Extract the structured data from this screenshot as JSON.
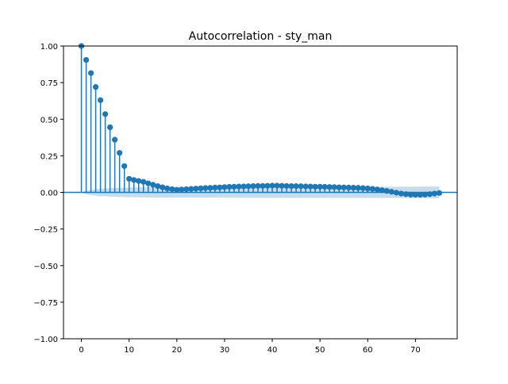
{
  "chart_data": {
    "type": "stem",
    "title": "Autocorrelation - sty_man",
    "xlabel": "",
    "ylabel": "",
    "xlim": [
      -3.75,
      78.75
    ],
    "ylim": [
      -1.0,
      1.0
    ],
    "xticks": [
      0,
      10,
      20,
      30,
      40,
      50,
      60,
      70
    ],
    "xtick_labels": [
      "0",
      "10",
      "20",
      "30",
      "40",
      "50",
      "60",
      "70"
    ],
    "yticks": [
      -1.0,
      -0.75,
      -0.5,
      -0.25,
      0.0,
      0.25,
      0.5,
      0.75,
      1.0
    ],
    "ytick_labels": [
      "−1.00",
      "−0.75",
      "−0.50",
      "−0.25",
      "0.00",
      "0.25",
      "0.50",
      "0.75",
      "1.00"
    ],
    "grid": false,
    "colors": {
      "stem": "#1f77b4",
      "confidence_band": "#1f77b4",
      "zero_line": "#1f77b4"
    },
    "lags": [
      0,
      1,
      2,
      3,
      4,
      5,
      6,
      7,
      8,
      9,
      10,
      11,
      12,
      13,
      14,
      15,
      16,
      17,
      18,
      19,
      20,
      21,
      22,
      23,
      24,
      25,
      26,
      27,
      28,
      29,
      30,
      31,
      32,
      33,
      34,
      35,
      36,
      37,
      38,
      39,
      40,
      41,
      42,
      43,
      44,
      45,
      46,
      47,
      48,
      49,
      50,
      51,
      52,
      53,
      54,
      55,
      56,
      57,
      58,
      59,
      60,
      61,
      62,
      63,
      64,
      65,
      66,
      67,
      68,
      69,
      70,
      71,
      72,
      73,
      74,
      75
    ],
    "acf": [
      1.0,
      0.905,
      0.815,
      0.72,
      0.63,
      0.535,
      0.445,
      0.36,
      0.27,
      0.18,
      0.093,
      0.085,
      0.078,
      0.072,
      0.062,
      0.052,
      0.043,
      0.035,
      0.027,
      0.022,
      0.018,
      0.02,
      0.022,
      0.024,
      0.026,
      0.028,
      0.03,
      0.031,
      0.033,
      0.034,
      0.036,
      0.038,
      0.039,
      0.04,
      0.041,
      0.042,
      0.043,
      0.044,
      0.044,
      0.045,
      0.046,
      0.046,
      0.045,
      0.044,
      0.043,
      0.043,
      0.042,
      0.041,
      0.04,
      0.039,
      0.039,
      0.038,
      0.037,
      0.036,
      0.035,
      0.034,
      0.033,
      0.032,
      0.031,
      0.029,
      0.027,
      0.024,
      0.02,
      0.015,
      0.01,
      0.004,
      -0.002,
      -0.008,
      -0.012,
      -0.015,
      -0.016,
      -0.016,
      -0.015,
      -0.012,
      -0.008,
      -0.004
    ],
    "confidence_band": {
      "lags": [
        0,
        1,
        2,
        3,
        4,
        5,
        6,
        7,
        8,
        9,
        10,
        12,
        15,
        20,
        30,
        40,
        50,
        60,
        70,
        75
      ],
      "upper": [
        0.0,
        0.012,
        0.018,
        0.022,
        0.025,
        0.027,
        0.029,
        0.03,
        0.031,
        0.032,
        0.033,
        0.034,
        0.035,
        0.035,
        0.036,
        0.037,
        0.037,
        0.038,
        0.039,
        0.04
      ],
      "lower": [
        0.0,
        -0.012,
        -0.018,
        -0.022,
        -0.025,
        -0.027,
        -0.029,
        -0.03,
        -0.031,
        -0.032,
        -0.033,
        -0.034,
        -0.035,
        -0.035,
        -0.036,
        -0.037,
        -0.037,
        -0.038,
        -0.039,
        -0.04
      ]
    }
  }
}
